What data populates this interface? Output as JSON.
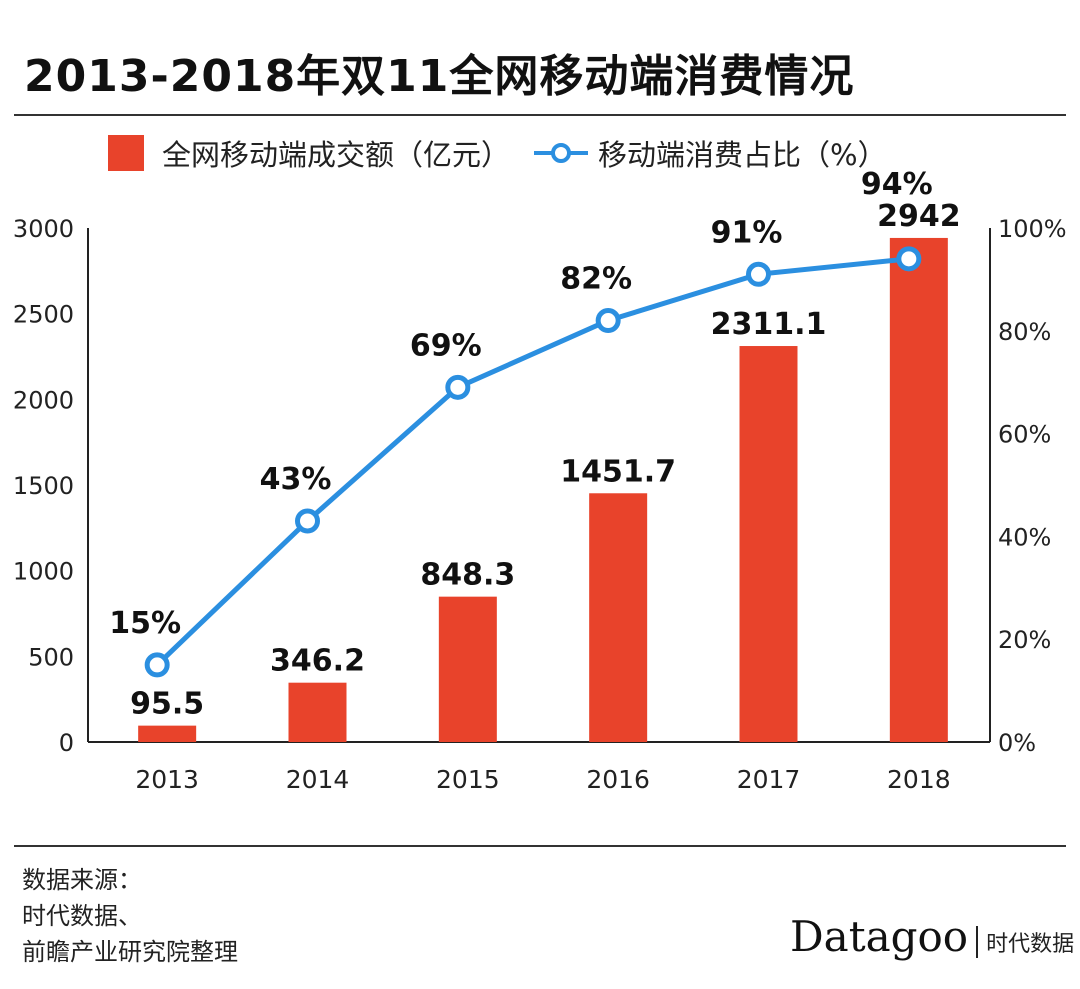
{
  "title": "2013-2018年双11全网移动端消费情况",
  "footer": {
    "source_lines": [
      "数据来源：",
      "时代数据、",
      "前瞻产业研究院整理"
    ],
    "logo": "Datagoo",
    "logo_sub": "时代数据"
  },
  "chart_data": {
    "type": "bar+line",
    "title": "2013-2018年双11全网移动端消费情况",
    "categories": [
      "2013",
      "2014",
      "2015",
      "2016",
      "2017",
      "2018"
    ],
    "series": [
      {
        "name": "全网移动端成交额（亿元）",
        "type": "bar",
        "axis": "left",
        "color": "#e8432b",
        "values": [
          95.5,
          346.2,
          848.3,
          1451.7,
          2311.1,
          2942
        ],
        "labels": [
          "95.5",
          "346.2",
          "848.3",
          "1451.7",
          "2311.1",
          "2942"
        ]
      },
      {
        "name": "移动端消费占比（%）",
        "type": "line",
        "axis": "right",
        "color": "#2b8fe0",
        "values": [
          15,
          43,
          69,
          82,
          91,
          94
        ],
        "labels": [
          "15%",
          "43%",
          "69%",
          "82%",
          "91%",
          "94%"
        ]
      }
    ],
    "left_axis": {
      "range": [
        0,
        3000
      ],
      "ticks": [
        "0",
        "500",
        "1000",
        "1500",
        "2000",
        "2500",
        "3000"
      ]
    },
    "right_axis": {
      "range": [
        0,
        100
      ],
      "ticks": [
        "0%",
        "20%",
        "40%",
        "60%",
        "80%",
        "100%"
      ]
    },
    "grid": false,
    "legend_position": "top"
  }
}
